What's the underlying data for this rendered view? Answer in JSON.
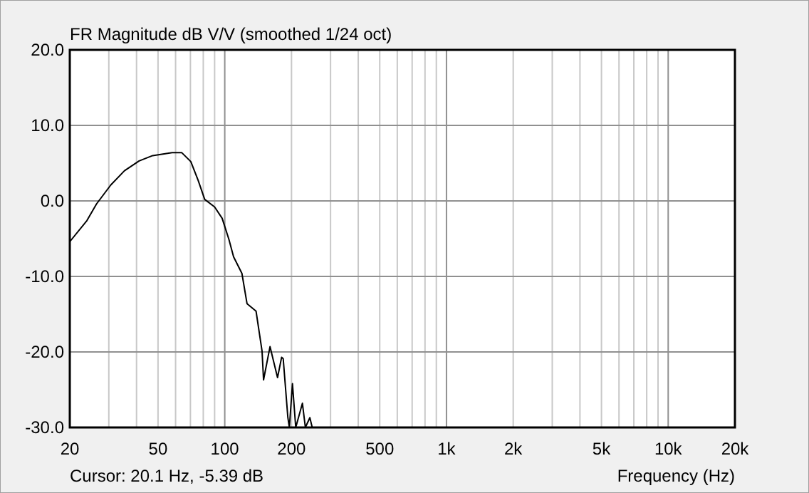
{
  "chart_data": {
    "type": "line",
    "title": "FR Magnitude dB V/V (smoothed 1/24 oct)",
    "xlabel": "Frequency (Hz)",
    "annotations": [
      "Cursor: 20.1 Hz, -5.39 dB"
    ],
    "log": "x",
    "grid": true,
    "marker": "none",
    "line_style": "solid",
    "xlim": [
      20,
      20000
    ],
    "ylim": [
      -30,
      20
    ],
    "xticks": [
      20,
      {
        "value": 30,
        "label": null
      },
      {
        "value": 40,
        "label": null
      },
      50,
      {
        "value": 60,
        "label": null
      },
      {
        "value": 70,
        "label": null
      },
      {
        "value": 80,
        "label": null
      },
      {
        "value": 90,
        "label": null
      },
      100,
      200,
      {
        "value": 300,
        "label": null
      },
      {
        "value": 400,
        "label": null
      },
      500,
      {
        "value": 600,
        "label": null
      },
      {
        "value": 700,
        "label": null
      },
      {
        "value": 800,
        "label": null
      },
      {
        "value": 900,
        "label": null
      },
      {
        "value": 1000,
        "label": "1k"
      },
      {
        "value": 2000,
        "label": "2k"
      },
      {
        "value": 3000,
        "label": null
      },
      {
        "value": 4000,
        "label": null
      },
      {
        "value": 5000,
        "label": "5k"
      },
      {
        "value": 6000,
        "label": null
      },
      {
        "value": 7000,
        "label": null
      },
      {
        "value": 8000,
        "label": null
      },
      {
        "value": 9000,
        "label": null
      },
      {
        "value": 10000,
        "label": "10k"
      },
      {
        "value": 20000,
        "label": "20k"
      }
    ],
    "yticks": [
      {
        "value": -30,
        "label": "-30.0"
      },
      {
        "value": -20,
        "label": "-20.0"
      },
      {
        "value": -10,
        "label": "-10.0"
      },
      {
        "value": 0,
        "label": "0.0"
      },
      {
        "value": 10,
        "label": "10.0"
      },
      {
        "value": 20,
        "label": "20.0"
      }
    ],
    "series": [
      {
        "color": "#000000",
        "x": [
          20,
          23.9,
          26.4,
          30.6,
          35.3,
          41.1,
          47.3,
          57.9,
          63.9,
          70.3,
          75.9,
          81.2,
          90,
          97.3,
          104.4,
          109.6,
          119.5,
          126,
          138.4,
          147.3,
          149.6,
          160,
          173,
          180.5,
          183.5,
          192.6,
          195.6,
          202,
          209,
          224,
          231,
          242,
          248
        ],
        "values": [
          -5.4,
          -2.6,
          -0.4,
          2.1,
          4,
          5.3,
          6,
          6.4,
          6.4,
          5.2,
          2.7,
          0.2,
          -0.8,
          -2.3,
          -5.1,
          -7.4,
          -9.6,
          -13.6,
          -14.6,
          -19.9,
          -23.7,
          -19.3,
          -23.4,
          -20.7,
          -20.9,
          -28.7,
          -30,
          -24.2,
          -30,
          -26.8,
          -30,
          -28.7,
          -30
        ]
      }
    ]
  }
}
